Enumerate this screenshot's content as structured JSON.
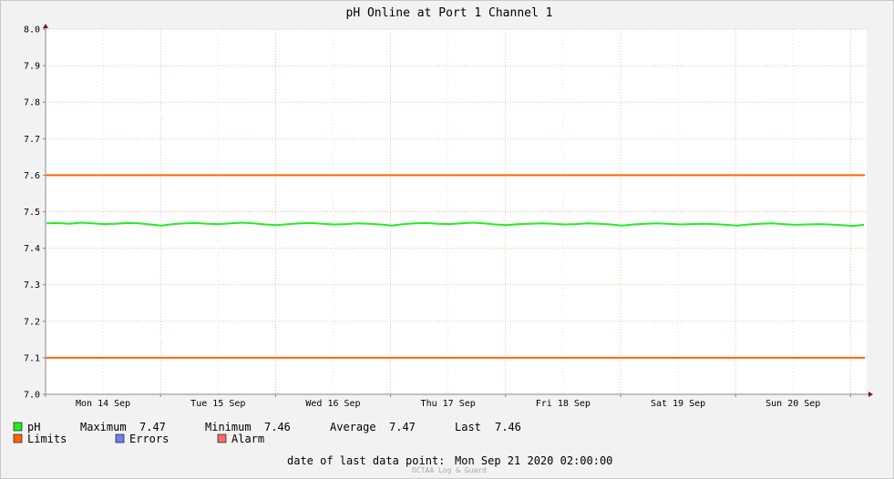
{
  "chart_data": {
    "type": "line",
    "title": "pH Online at Port 1 Channel 1",
    "xlabel": "",
    "ylabel": "",
    "ylim": [
      7.0,
      8.0
    ],
    "y_ticks": [
      "7.0",
      "7.1",
      "7.2",
      "7.3",
      "7.4",
      "7.5",
      "7.6",
      "7.7",
      "7.8",
      "7.9",
      "8.0"
    ],
    "x_ticks": [
      "Mon 14 Sep",
      "Tue 15 Sep",
      "Wed 16 Sep",
      "Thu 17 Sep",
      "Fri 18 Sep",
      "Sat 19 Sep",
      "Sun 20 Sep"
    ],
    "grid": true,
    "series": [
      {
        "name": "pH",
        "color": "#22ee22",
        "values": [
          7.468,
          7.469,
          7.467,
          7.47,
          7.468,
          7.466,
          7.467,
          7.469,
          7.468,
          7.465,
          7.462,
          7.466,
          7.468,
          7.469,
          7.467,
          7.466,
          7.468,
          7.47,
          7.468,
          7.465,
          7.463,
          7.466,
          7.468,
          7.469,
          7.467,
          7.465,
          7.466,
          7.468,
          7.467,
          7.465,
          7.462,
          7.466,
          7.468,
          7.469,
          7.467,
          7.466,
          7.468,
          7.47,
          7.468,
          7.465,
          7.463,
          7.466,
          7.467,
          7.468,
          7.467,
          7.465,
          7.466,
          7.468,
          7.467,
          7.465,
          7.462,
          7.465,
          7.467,
          7.468,
          7.467,
          7.465,
          7.466,
          7.467,
          7.466,
          7.464,
          7.462,
          7.465,
          7.467,
          7.468,
          7.466,
          7.464,
          7.465,
          7.466,
          7.465,
          7.463,
          7.461,
          7.464
        ]
      },
      {
        "name": "Limits",
        "color": "#ff6600",
        "upper": 7.6,
        "lower": 7.1
      }
    ]
  },
  "legend": {
    "ph_label": "pH",
    "max_label": "Maximum",
    "max_value": "7.47",
    "min_label": "Minimum",
    "min_value": "7.46",
    "avg_label": "Average",
    "avg_value": "7.47",
    "last_label": "Last",
    "last_value": "7.46",
    "limits_label": "Limits",
    "errors_label": "Errors",
    "alarm_label": "Alarm",
    "colors": {
      "ph": "#22ee22",
      "limits": "#ff6600",
      "errors": "#6f7fee",
      "alarm": "#ee6f6f"
    }
  },
  "footer": {
    "last_point_label": "date of last data point:",
    "last_point_value": "Mon Sep 21 2020 02:00:00",
    "watermark": "OCTAA Log & Guard"
  }
}
